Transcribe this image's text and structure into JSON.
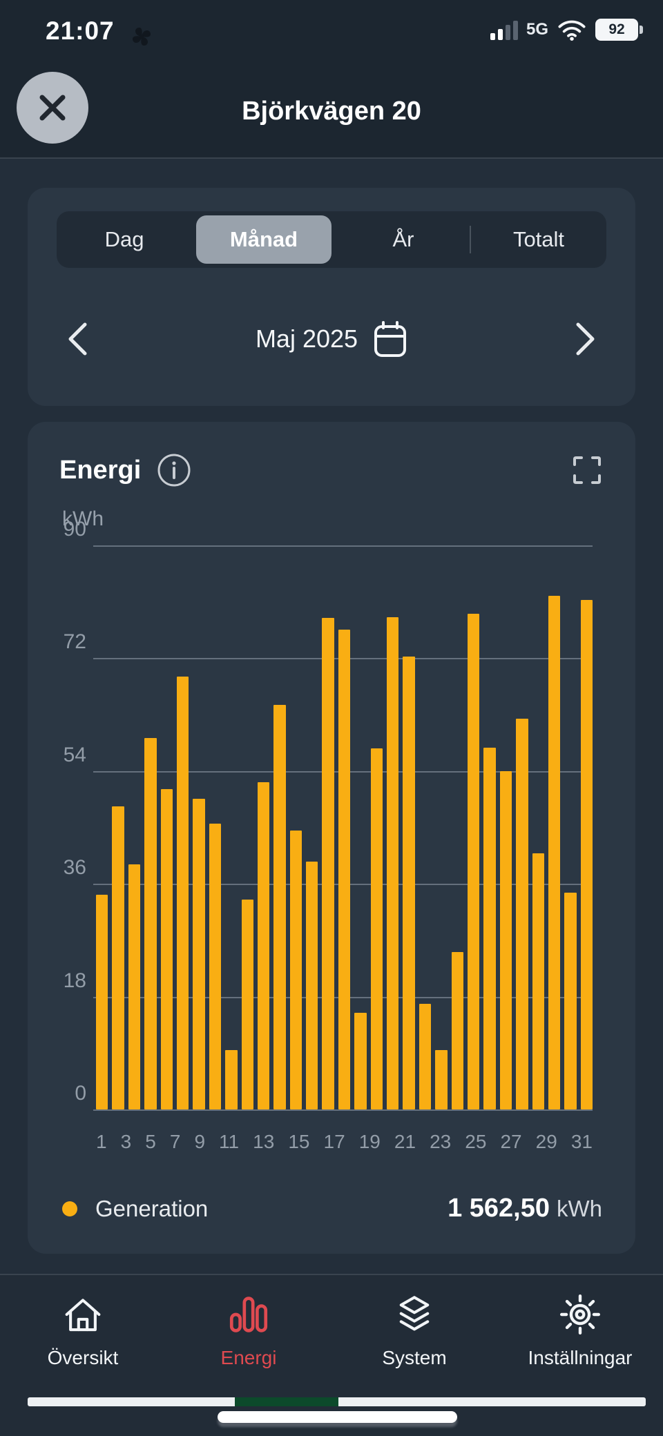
{
  "status_bar": {
    "time": "21:07",
    "network": "5G",
    "battery": "92"
  },
  "header": {
    "title": "Björkvägen 20"
  },
  "period_tabs": {
    "items": [
      {
        "label": "Dag",
        "selected": false
      },
      {
        "label": "Månad",
        "selected": true
      },
      {
        "label": "År",
        "selected": false
      },
      {
        "label": "Totalt",
        "selected": false
      }
    ]
  },
  "date_nav": {
    "label": "Maj 2025"
  },
  "energy_card": {
    "title": "Energi",
    "unit_label": "kWh"
  },
  "chart_data": {
    "type": "bar",
    "title": "Energi",
    "ylabel": "kWh",
    "ylim": [
      0,
      90
    ],
    "yticks": [
      90,
      72,
      54,
      36,
      18,
      0
    ],
    "grid": "horizontal",
    "legend_position": "bottom",
    "categories": [
      1,
      2,
      3,
      4,
      5,
      6,
      7,
      8,
      9,
      10,
      11,
      12,
      13,
      14,
      15,
      16,
      17,
      18,
      19,
      20,
      21,
      22,
      23,
      24,
      25,
      26,
      27,
      28,
      29,
      30,
      31
    ],
    "xtick_labels": [
      "1",
      "3",
      "5",
      "7",
      "9",
      "11",
      "13",
      "15",
      "17",
      "19",
      "21",
      "23",
      "25",
      "27",
      "29",
      "31"
    ],
    "series": [
      {
        "name": "Generation",
        "color": "#F9AE13",
        "values": [
          34.3,
          48.4,
          39.1,
          59.3,
          51.1,
          69.1,
          49.6,
          45.6,
          9.5,
          33.5,
          52.2,
          64.6,
          44.5,
          39.5,
          78.4,
          76.6,
          15.4,
          57.6,
          78.5,
          72.3,
          16.9,
          9.5,
          25.1,
          79.1,
          57.7,
          54.0,
          62.3,
          40.9,
          82.0,
          34.6,
          81.3
        ]
      }
    ],
    "total": "1 562,50",
    "total_unit": "kWh"
  },
  "legend": {
    "name": "Generation",
    "value": "1 562,50",
    "unit": "kWh"
  },
  "bottom_nav": {
    "items": [
      {
        "label": "Översikt",
        "icon": "home",
        "active": false
      },
      {
        "label": "Energi",
        "icon": "energy-bars",
        "active": true
      },
      {
        "label": "System",
        "icon": "layers",
        "active": false
      },
      {
        "label": "Inställningar",
        "icon": "gear",
        "active": false
      }
    ]
  },
  "colors": {
    "bar": "#F9AE13",
    "nav_active": "#DF4A50",
    "progress_green": "#0C4A2B",
    "selected_tab_bg": "#99A2AB",
    "card_bg": "#2B3744",
    "page_bg": "#232E3A"
  }
}
